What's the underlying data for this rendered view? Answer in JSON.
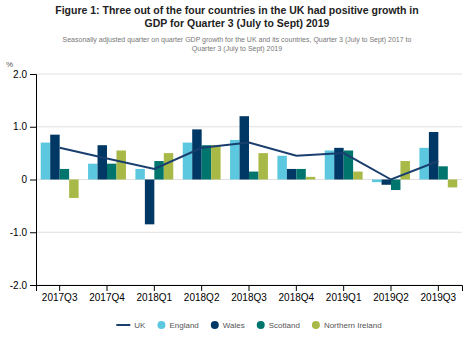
{
  "chart_data": {
    "type": "bar",
    "title": [
      "Figure 1: Three out of the four countries in the UK had positive growth in",
      "GDP for Quarter 3 (July to Sept) 2019"
    ],
    "subtitle": [
      "Seasonally adjusted quarter on quarter GDP growth for the UK and its countries, Quarter 3 (July to Sept) 2017 to",
      "Quarter 3 (July to Sept) 2019"
    ],
    "ylabel": "%",
    "categories": [
      "2017Q3",
      "2017Q4",
      "2018Q1",
      "2018Q2",
      "2018Q3",
      "2018Q4",
      "2019Q1",
      "2019Q2",
      "2019Q3"
    ],
    "series": [
      {
        "name": "UK",
        "type": "line",
        "color": "#1a3f6f",
        "values": [
          0.6,
          0.4,
          0.2,
          0.6,
          0.7,
          0.45,
          0.5,
          0.0,
          0.35
        ]
      },
      {
        "name": "England",
        "type": "bar",
        "color": "#5bc8e0",
        "values": [
          0.7,
          0.3,
          0.2,
          0.7,
          0.75,
          0.45,
          0.55,
          -0.05,
          0.6
        ]
      },
      {
        "name": "Wales",
        "type": "bar",
        "color": "#003865",
        "values": [
          0.85,
          0.65,
          -0.85,
          0.95,
          1.2,
          0.2,
          0.6,
          -0.1,
          0.9
        ]
      },
      {
        "name": "Scotland",
        "type": "bar",
        "color": "#00756e",
        "values": [
          0.2,
          0.3,
          0.35,
          0.65,
          0.15,
          0.2,
          0.55,
          -0.2,
          0.25
        ]
      },
      {
        "name": "Northern Ireland",
        "type": "bar",
        "color": "#a8b947",
        "values": [
          -0.35,
          0.55,
          0.5,
          0.65,
          0.5,
          0.05,
          0.15,
          0.35,
          -0.15
        ]
      }
    ],
    "ylim": [
      -2.0,
      2.0
    ],
    "yticks": [
      {
        "value": -2.0,
        "label": "-2.0"
      },
      {
        "value": -1.0,
        "label": "-1.0"
      },
      0,
      {
        "value": 1.0,
        "label": "1.0"
      },
      {
        "value": 2.0,
        "label": "2.0"
      }
    ],
    "grid": true,
    "legend": "bottom"
  }
}
